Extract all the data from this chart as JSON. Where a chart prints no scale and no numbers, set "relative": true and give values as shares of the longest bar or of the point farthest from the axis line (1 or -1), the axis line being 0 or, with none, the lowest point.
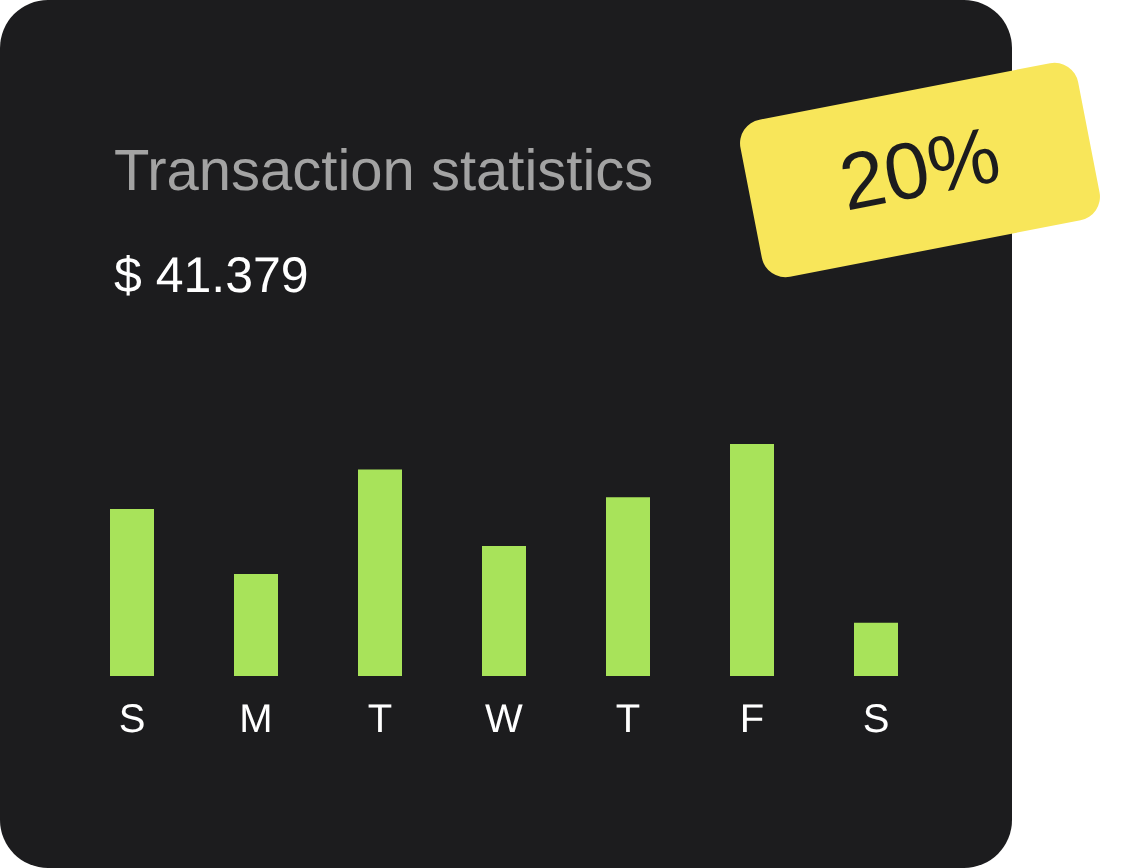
{
  "chart_data": {
    "type": "bar",
    "title": "Transaction statistics",
    "subtitle": "$ 41.379",
    "annotations": [
      "20%"
    ],
    "categories": [
      "S",
      "M",
      "T",
      "W",
      "T",
      "F",
      "S"
    ],
    "values": [
      0.72,
      0.44,
      0.89,
      0.56,
      0.77,
      1,
      0.23
    ],
    "color": "#a8e35a",
    "relative": true,
    "grid": false,
    "legend": false
  }
}
